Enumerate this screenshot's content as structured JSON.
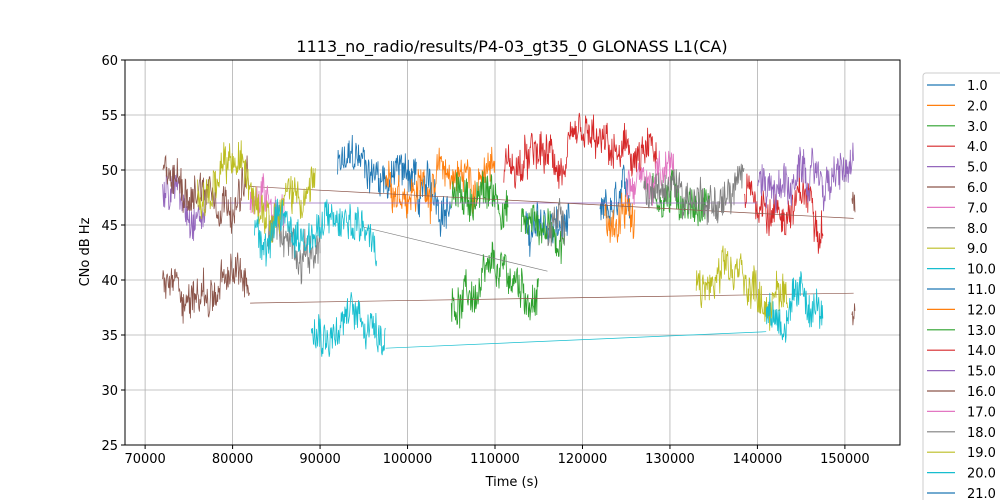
{
  "chart_data": {
    "type": "line",
    "title": "1113_no_radio/results/P4-03_gt35_0 GLONASS L1(CA)",
    "xlabel": "Time (s)",
    "ylabel": "CNo dB Hz",
    "xlim": [
      67700,
      156300
    ],
    "ylim": [
      25,
      60
    ],
    "xticks": [
      70000,
      80000,
      90000,
      100000,
      110000,
      120000,
      130000,
      140000,
      150000
    ],
    "yticks": [
      25,
      30,
      35,
      40,
      45,
      50,
      55,
      60
    ],
    "grid": true,
    "legend_position": "outside-right",
    "colors": [
      "#1f77b4",
      "#ff7f0e",
      "#2ca02c",
      "#d62728",
      "#9467bd",
      "#8c564b",
      "#e377c2",
      "#7f7f7f",
      "#bcbd22",
      "#17becf"
    ],
    "series": [
      {
        "name": "1.0",
        "segments": [
          [
            92000,
            101000,
            50
          ],
          [
            101000,
            105000,
            47.5
          ],
          [
            113500,
            118500,
            44
          ],
          [
            122000,
            125500,
            45.5
          ]
        ]
      },
      {
        "name": "2.0",
        "segments": [
          [
            97500,
            110000,
            49.5
          ],
          [
            122500,
            126000,
            46
          ]
        ]
      },
      {
        "name": "3.0",
        "segments": [
          [
            105000,
            115000,
            38.5
          ],
          [
            105000,
            111500,
            47.5
          ],
          [
            113000,
            118000,
            45
          ],
          [
            128000,
            134500,
            48
          ]
        ]
      },
      {
        "name": "4.0",
        "segments": [
          [
            111000,
            128500,
            50
          ],
          [
            138500,
            147500,
            47
          ]
        ]
      },
      {
        "name": "5.0",
        "segments": [
          [
            72000,
            77000,
            48
          ],
          [
            140000,
            151000,
            49
          ]
        ],
        "links": [
          [
            77000,
            47,
            140000,
            47
          ]
        ]
      },
      {
        "name": "6.0",
        "segments": [
          [
            72000,
            82000,
            49.5
          ],
          [
            72000,
            82000,
            39
          ],
          [
            150800,
            151200,
            47
          ],
          [
            150800,
            151200,
            38
          ]
        ],
        "links": [
          [
            82000,
            37.9,
            151000,
            38.8
          ],
          [
            82000,
            48.5,
            151000,
            45.6
          ]
        ]
      },
      {
        "name": "7.0",
        "segments": [
          [
            82000,
            86000,
            48
          ],
          [
            125000,
            130500,
            49
          ]
        ]
      },
      {
        "name": "8.0",
        "segments": [
          [
            84000,
            90000,
            44
          ],
          [
            116000,
            118000,
            44
          ],
          [
            127000,
            138500,
            48
          ]
        ],
        "links": [
          [
            95000,
            44.8,
            116000,
            40.8
          ]
        ]
      },
      {
        "name": "9.0",
        "segments": [
          [
            76000,
            89500,
            49
          ],
          [
            133000,
            143500,
            39
          ]
        ]
      },
      {
        "name": "10.0",
        "segments": [
          [
            82500,
            96500,
            45
          ],
          [
            89000,
            97500,
            36.5
          ],
          [
            141000,
            147500,
            37
          ]
        ],
        "links": [
          [
            97500,
            33.8,
            141000,
            35.3
          ]
        ]
      },
      {
        "name": "11.0",
        "segments": []
      },
      {
        "name": "12.0",
        "segments": []
      },
      {
        "name": "13.0",
        "segments": []
      },
      {
        "name": "14.0",
        "segments": []
      },
      {
        "name": "15.0",
        "segments": []
      },
      {
        "name": "16.0",
        "segments": []
      },
      {
        "name": "17.0",
        "segments": []
      },
      {
        "name": "18.0",
        "segments": []
      },
      {
        "name": "19.0",
        "segments": []
      },
      {
        "name": "20.0",
        "segments": []
      },
      {
        "name": "21.0",
        "segments": []
      }
    ]
  }
}
